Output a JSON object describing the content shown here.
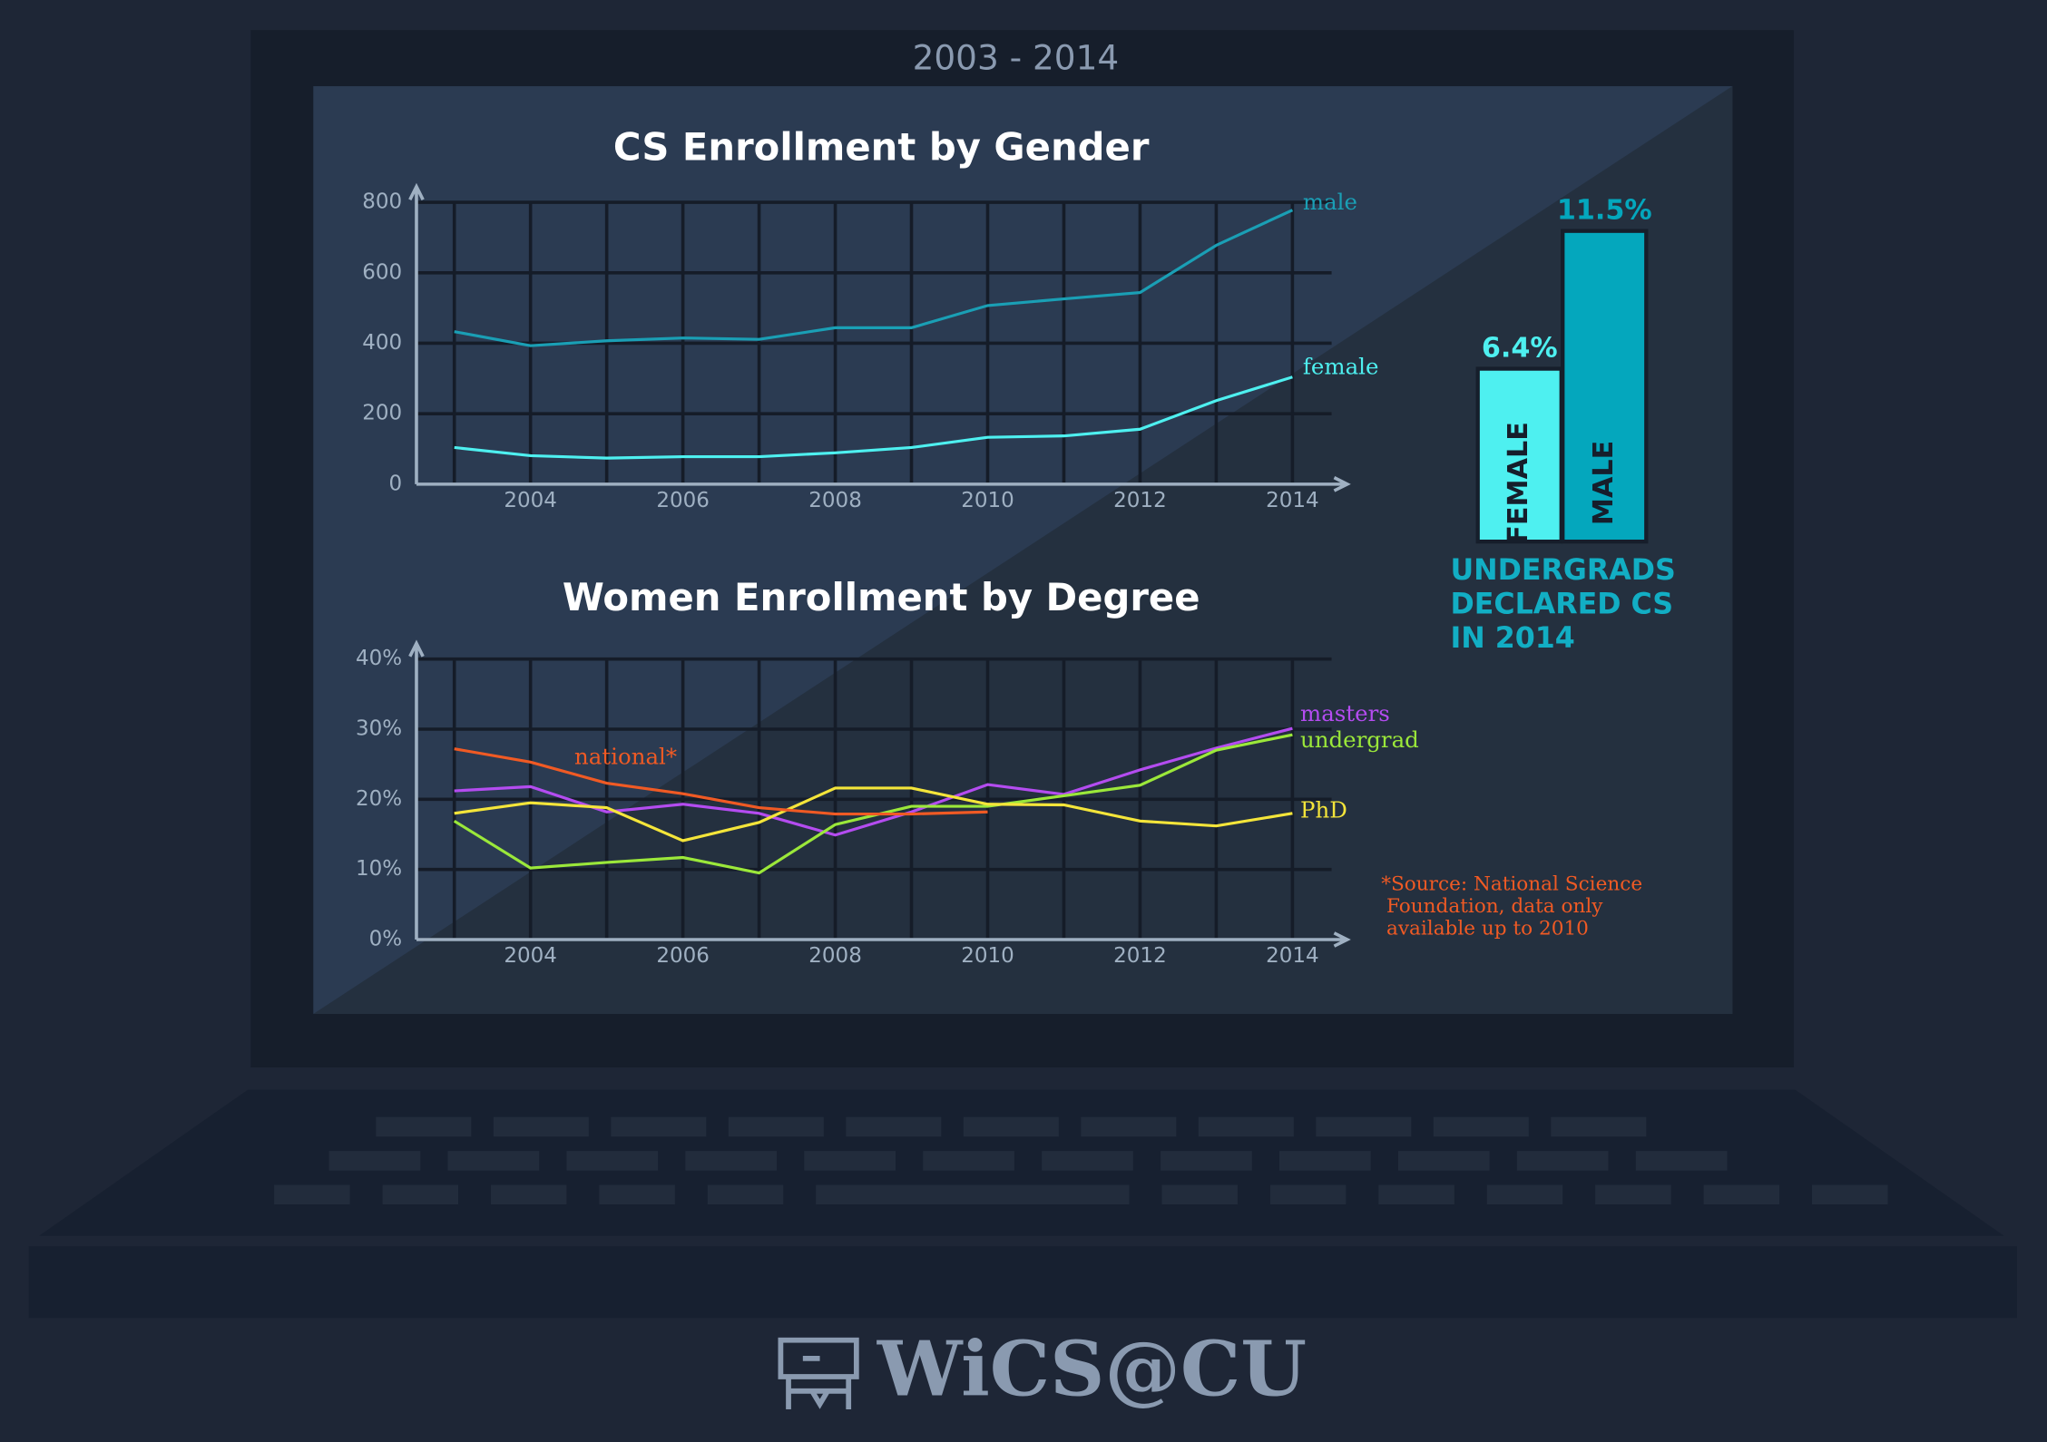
{
  "header": {
    "period": "2003 - 2014",
    "logo": "WiCS@CU"
  },
  "chart_data": [
    {
      "type": "line",
      "title": "CS Enrollment by Gender",
      "x": [
        2003,
        2004,
        2005,
        2006,
        2007,
        2008,
        2009,
        2010,
        2011,
        2012,
        2013,
        2014
      ],
      "xlim": [
        2003,
        2014
      ],
      "xticks": [
        2004,
        2006,
        2008,
        2010,
        2012,
        2014
      ],
      "ylim": [
        0,
        800
      ],
      "yticks": [
        0,
        200,
        400,
        600,
        800
      ],
      "grid": true,
      "series": [
        {
          "name": "male",
          "color": "#1a9fb5",
          "values": [
            433,
            393,
            407,
            415,
            411,
            444,
            444,
            507,
            526,
            544,
            678,
            778
          ]
        },
        {
          "name": "female",
          "color": "#4ef0f0",
          "values": [
            104,
            81,
            74,
            78,
            78,
            89,
            104,
            133,
            137,
            156,
            237,
            304
          ]
        }
      ]
    },
    {
      "type": "line",
      "title": "Women Enrollment by Degree",
      "x": [
        2003,
        2004,
        2005,
        2006,
        2007,
        2008,
        2009,
        2010,
        2011,
        2012,
        2013,
        2014
      ],
      "xlim": [
        2003,
        2014
      ],
      "xticks": [
        2004,
        2006,
        2008,
        2010,
        2012,
        2014
      ],
      "ylim": [
        0,
        40
      ],
      "yticks": [
        {
          "value": 0,
          "label": "0%"
        },
        {
          "value": 10,
          "label": "10%"
        },
        {
          "value": 20,
          "label": "20%"
        },
        {
          "value": 30,
          "label": "30%"
        },
        {
          "value": 40,
          "label": "40%"
        }
      ],
      "grid": true,
      "annotation": [
        "*Source: National Science",
        "Foundation, data only",
        "available up to 2010"
      ],
      "series": [
        {
          "name": "masters",
          "color": "#b44cf0",
          "values": [
            21.2,
            21.8,
            18.2,
            19.3,
            18,
            14.9,
            18.2,
            22.1,
            20.7,
            24.2,
            27.3,
            30.1
          ]
        },
        {
          "name": "undergrad",
          "color": "#9be83a",
          "values": [
            16.9,
            10.2,
            11,
            11.7,
            9.5,
            16.4,
            19,
            19,
            20.5,
            22,
            27,
            29.2
          ]
        },
        {
          "name": "PhD",
          "color": "#f4e53a",
          "values": [
            18,
            19.5,
            18.8,
            14.1,
            16.7,
            21.6,
            21.6,
            19.3,
            19.2,
            16.9,
            16.2,
            18
          ]
        },
        {
          "name": "national*",
          "color": "#f05a24",
          "values": [
            27.2,
            25.3,
            22.3,
            20.8,
            18.8,
            17.9,
            17.9,
            18.2,
            null,
            null,
            null,
            null
          ]
        }
      ]
    },
    {
      "type": "bar",
      "title": [
        "UNDERGRADS",
        "DECLARED CS",
        "IN 2014"
      ],
      "categories": [
        "FEMALE",
        "MALE"
      ],
      "values": [
        6.4,
        11.5
      ],
      "value_labels": [
        "6.4%",
        "11.5%"
      ],
      "colors": [
        "#4ef0f0",
        "#04a7bd"
      ]
    }
  ]
}
